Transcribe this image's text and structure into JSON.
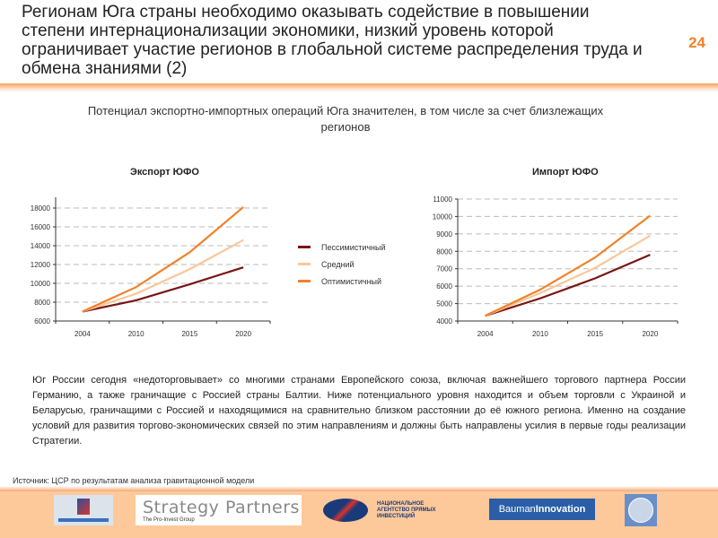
{
  "header": {
    "title": "Регионам  Юга страны необходимо оказывать содействие в повышении степени интернационализации экономики, низкий уровень которой ограничивает участие регионов в глобальной системе распределения труда и обмена знаниями (2)",
    "page_number": "24"
  },
  "subtitle": "Потенциал экспортно-импортных операций Юга значителен, в том числе за счет близлежащих регионов",
  "legend": [
    "Пессимистичный",
    "Средний",
    "Оптимистичный"
  ],
  "colors": {
    "pess": "#7a1414",
    "mid": "#f9c79a",
    "opt": "#f0822a",
    "accent": "#f0822a"
  },
  "chart_data": [
    {
      "type": "line",
      "title": "Экспорт ЮФО",
      "categories": [
        "2004",
        "2010",
        "2015",
        "2020"
      ],
      "ylim": [
        6000,
        18000
      ],
      "yticks": [
        "6000",
        "8000",
        "10000",
        "12000",
        "14000",
        "16000",
        "18000"
      ],
      "series": [
        {
          "name": "Пессимистичный",
          "values": [
            7000,
            8200,
            9900,
            11700
          ]
        },
        {
          "name": "Средний",
          "values": [
            7000,
            8900,
            11500,
            14600
          ]
        },
        {
          "name": "Оптимистичный",
          "values": [
            7000,
            9600,
            13300,
            18100
          ]
        }
      ]
    },
    {
      "type": "line",
      "title": "Импорт ЮФО",
      "categories": [
        "2004",
        "2010",
        "2015",
        "2020"
      ],
      "ylim": [
        4000,
        11000
      ],
      "yticks": [
        "4000",
        "5000",
        "6000",
        "7000",
        "8000",
        "9000",
        "10000",
        "11000"
      ],
      "series": [
        {
          "name": "Пессимистичный",
          "values": [
            4300,
            5300,
            6450,
            7800
          ]
        },
        {
          "name": "Средний",
          "values": [
            4300,
            5600,
            7050,
            8900
          ]
        },
        {
          "name": "Оптимистичный",
          "values": [
            4300,
            5800,
            7650,
            10050
          ]
        }
      ]
    }
  ],
  "body": "Юг России сегодня «недоторговывает» со многими странами Европейского союза, включая важнейшего торгового партнера России Германию, а также граничащие с Россией страны Балтии. Ниже потенциального уровня находится и объем торговли с Украиной и Беларусью, граничащими с Россией и находящимися на сравнительно близком расстоянии до её южного региона. Именно на создание условий для развития торгово-экономических связей по этим направлениям и должны быть направлены усилия в первые годы реализации Стратегии.",
  "source": "Источник: ЦСР по результатам анализа гравитационной модели",
  "logos": {
    "sp_main": "Strategy Partners",
    "sp_sub": "The Pro-Invest Group",
    "napi": "НАЦИОНАЛЬНОЕ АГЕНТСТВО ПРЯМЫХ ИНВЕСТИЦИЙ",
    "bauman1": "Bauman",
    "bauman2": "Innovation"
  }
}
